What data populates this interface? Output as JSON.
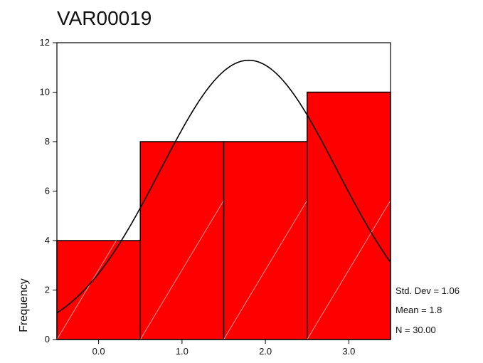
{
  "chart_data": {
    "type": "bar",
    "title": "VAR00019",
    "ylabel": "Frequency",
    "xlabel": "",
    "categories": [
      "0.0",
      "1.0",
      "2.0",
      "3.0"
    ],
    "values": [
      4,
      8,
      8,
      10
    ],
    "bin_width": 1.0,
    "xlim": [
      -0.5,
      3.5
    ],
    "ylim": [
      0,
      12
    ],
    "y_ticks": [
      0,
      2,
      4,
      6,
      8,
      10,
      12
    ],
    "x_ticks": [
      0,
      1,
      2,
      3
    ],
    "normal_curve": {
      "mean": 1.8,
      "std_dev": 1.06,
      "n": 30
    },
    "stats": {
      "std_dev_label": "Std. Dev = 1.06",
      "mean_label": "Mean = 1.8",
      "n_label": "N = 30.00"
    },
    "grid": false,
    "colors": {
      "bar_fill": "#ff0000",
      "bar_stroke": "#000000",
      "curve": "#000000",
      "hatch": "#ff9a9a"
    }
  }
}
